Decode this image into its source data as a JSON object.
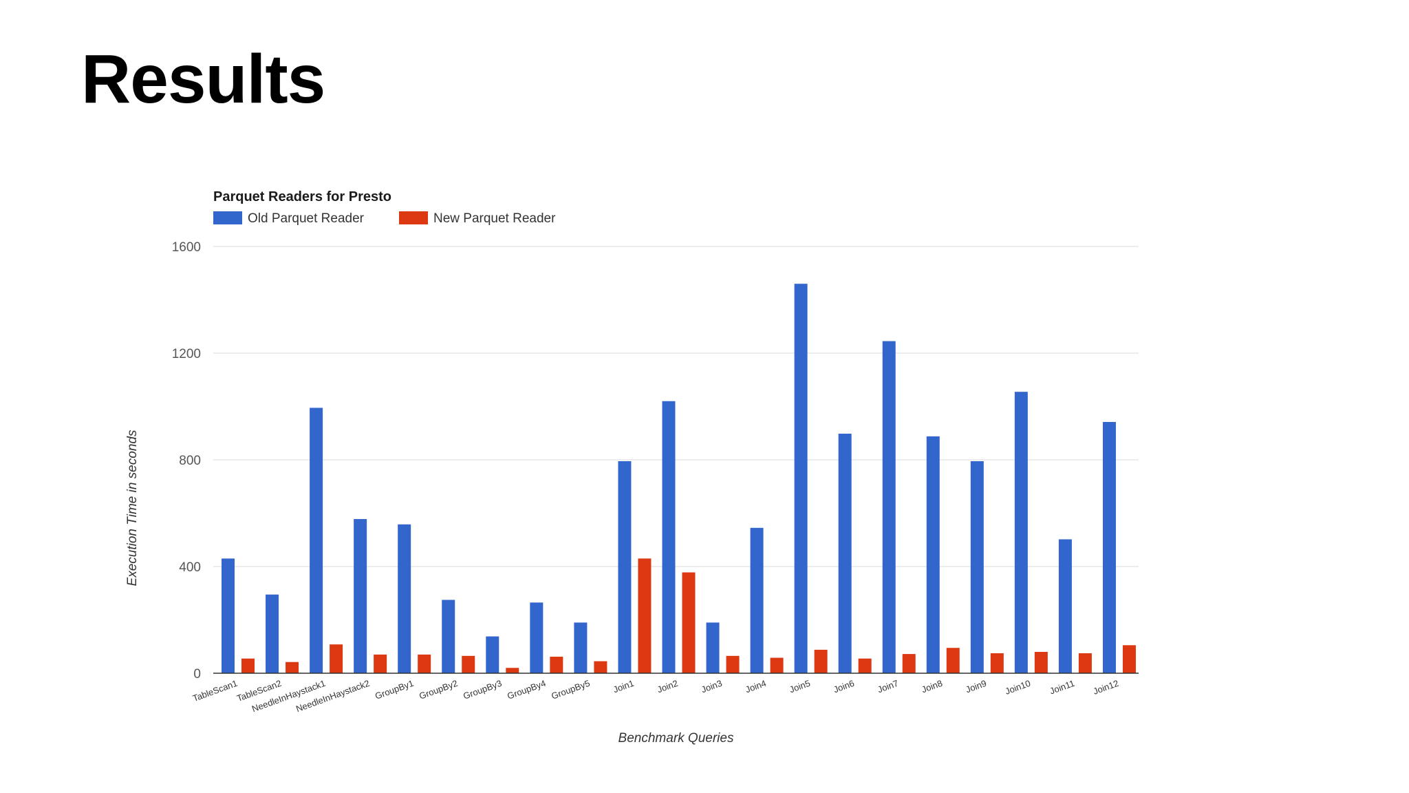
{
  "slide": {
    "title": "Results"
  },
  "chart_data": {
    "type": "bar",
    "title": "Parquet Readers for Presto",
    "xlabel": "Benchmark Queries",
    "ylabel": "Execution Time in seconds",
    "ylim": [
      0,
      1600
    ],
    "yticks": [
      0,
      400,
      800,
      1200,
      1600
    ],
    "grid": true,
    "legend_position": "top-left",
    "categories": [
      "TableScan1",
      "TableScan2",
      "NeedleInHaystack1",
      "NeedleInHaystack2",
      "GroupBy1",
      "GroupBy2",
      "GroupBy3",
      "GroupBy4",
      "GroupBy5",
      "Join1",
      "Join2",
      "Join3",
      "Join4",
      "Join5",
      "Join6",
      "Join7",
      "Join8",
      "Join9",
      "Join10",
      "Join11",
      "Join12"
    ],
    "series": [
      {
        "name": "Old Parquet Reader",
        "color": "#3366cc",
        "values": [
          430,
          295,
          995,
          578,
          558,
          275,
          138,
          265,
          190,
          795,
          1020,
          190,
          545,
          1460,
          898,
          1245,
          888,
          795,
          1055,
          502,
          942
        ]
      },
      {
        "name": "New Parquet Reader",
        "color": "#dc3912",
        "values": [
          55,
          42,
          108,
          70,
          70,
          65,
          20,
          62,
          45,
          430,
          378,
          65,
          58,
          88,
          55,
          72,
          95,
          75,
          80,
          75,
          105
        ]
      }
    ]
  }
}
